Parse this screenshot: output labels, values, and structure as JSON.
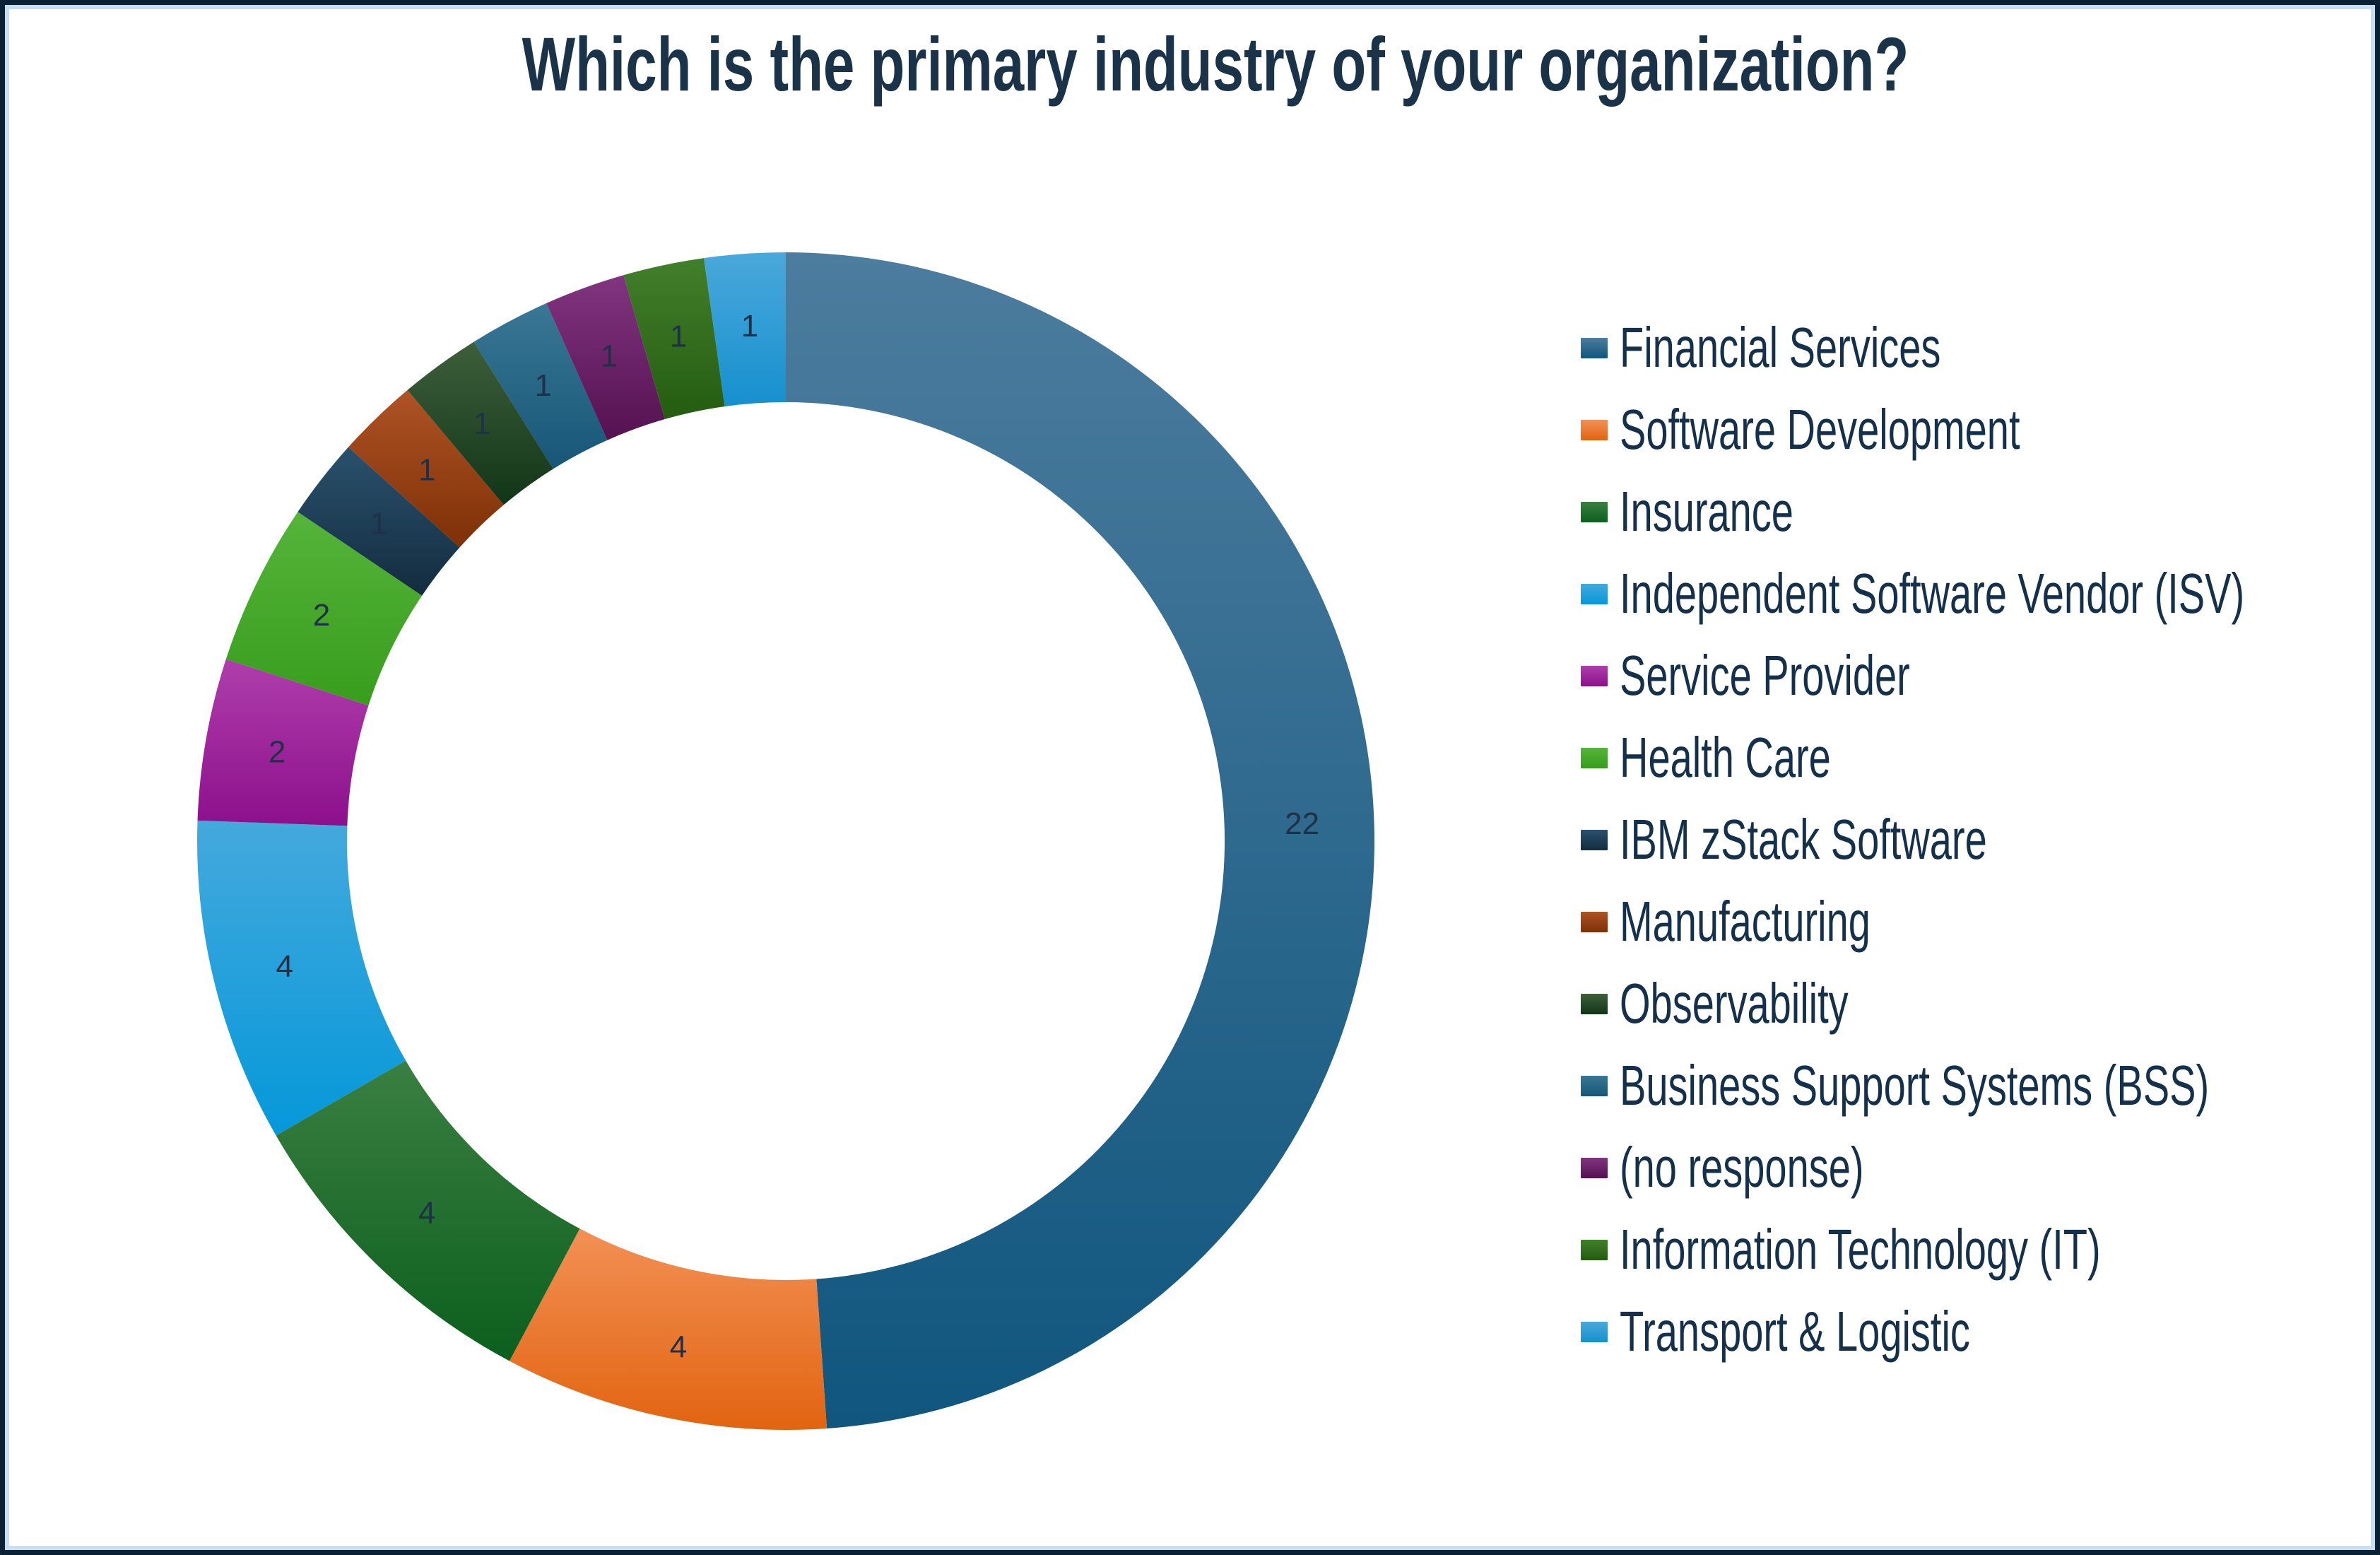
{
  "page": {
    "background_color": "#ffffff",
    "border_outer_color": "#0a2233",
    "border_inner_color": "#c7def5"
  },
  "chart_data": {
    "type": "pie",
    "subtype": "donut",
    "title": "Which is the primary industry of your organization?",
    "title_color": "#1b3348",
    "legend_position": "right",
    "direction": "clockwise",
    "start_angle_deg": 0,
    "total": 45,
    "hole_ratio": 0.745,
    "grid": false,
    "value_label_color": "#1f3148",
    "legend_text_color": "#14304a",
    "categories": [
      "Financial Services",
      "Software Development",
      "Insurance",
      "Independent Software Vendor (ISV)",
      "Service Provider",
      "Health Care",
      "IBM zStack Software",
      "Manufacturing",
      "Observability",
      "Business Support Systems (BSS)",
      "(no response)",
      "Information Technology (IT)",
      "Transport & Logistic"
    ],
    "values": [
      22,
      4,
      4,
      4,
      2,
      2,
      1,
      1,
      1,
      1,
      1,
      1,
      1
    ],
    "colors": [
      "#24658b",
      "#ec7a2f",
      "#1b6f2c",
      "#21a3dc",
      "#a225a0",
      "#4aa92c",
      "#1d4055",
      "#9c4213",
      "#1d4923",
      "#27688a",
      "#6e2168",
      "#376f1e",
      "#2c9dd4"
    ],
    "colors_top": [
      "#4c7c9e",
      "#f29055",
      "#3a7f42",
      "#44a9dc",
      "#af3eab",
      "#55b43a",
      "#2a516d",
      "#ae5326",
      "#3e5f3b",
      "#3a7795",
      "#813580",
      "#427f2b",
      "#4aa8db"
    ],
    "colors_bottom": [
      "#10567e",
      "#e26410",
      "#0c5f1e",
      "#0598da",
      "#8c108c",
      "#389d1d",
      "#132c3f",
      "#7e3006",
      "#113517",
      "#175677",
      "#541150",
      "#245c10",
      "#1690ce"
    ]
  }
}
